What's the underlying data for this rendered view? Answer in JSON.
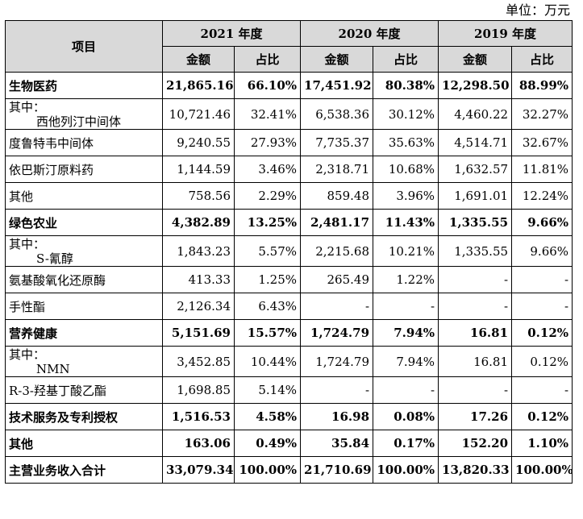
{
  "unit_label": "单位：万元",
  "header": {
    "item": "项目",
    "years": [
      "2021 年度",
      "2020 年度",
      "2019 年度"
    ],
    "amount": "金额",
    "ratio": "占比"
  },
  "rows": [
    {
      "label": "生物医药",
      "v": [
        "21,865.16",
        "66.10%",
        "17,451.92",
        "80.38%",
        "12,298.50",
        "88.99%"
      ]
    },
    {
      "prefix": "其中：",
      "label": "西他列汀中间体",
      "v": [
        "10,721.46",
        "32.41%",
        "6,538.36",
        "30.12%",
        "4,460.22",
        "32.27%"
      ]
    },
    {
      "label": "度鲁特韦中间体",
      "v": [
        "9,240.55",
        "27.93%",
        "7,735.37",
        "35.63%",
        "4,514.71",
        "32.67%"
      ]
    },
    {
      "label": "依巴斯汀原料药",
      "v": [
        "1,144.59",
        "3.46%",
        "2,318.71",
        "10.68%",
        "1,632.57",
        "11.81%"
      ]
    },
    {
      "label": "其他",
      "v": [
        "758.56",
        "2.29%",
        "859.48",
        "3.96%",
        "1,691.01",
        "12.24%"
      ]
    },
    {
      "label": "绿色农业",
      "v": [
        "4,382.89",
        "13.25%",
        "2,481.17",
        "11.43%",
        "1,335.55",
        "9.66%"
      ]
    },
    {
      "prefix": "其中：",
      "label": "S-氰醇",
      "v": [
        "1,843.23",
        "5.57%",
        "2,215.68",
        "10.21%",
        "1,335.55",
        "9.66%"
      ]
    },
    {
      "label": "氨基酸氧化还原酶",
      "v": [
        "413.33",
        "1.25%",
        "265.49",
        "1.22%",
        "-",
        "-"
      ]
    },
    {
      "label": "手性酯",
      "v": [
        "2,126.34",
        "6.43%",
        "-",
        "-",
        "-",
        "-"
      ]
    },
    {
      "label": "营养健康",
      "v": [
        "5,151.69",
        "15.57%",
        "1,724.79",
        "7.94%",
        "16.81",
        "0.12%"
      ]
    },
    {
      "prefix": "其中：",
      "label": "NMN",
      "v": [
        "3,452.85",
        "10.44%",
        "1,724.79",
        "7.94%",
        "16.81",
        "0.12%"
      ]
    },
    {
      "label": "R-3-羟基丁酸乙酯",
      "v": [
        "1,698.85",
        "5.14%",
        "-",
        "-",
        "-",
        "-"
      ]
    },
    {
      "label": "技术服务及专利授权",
      "v": [
        "1,516.53",
        "4.58%",
        "16.98",
        "0.08%",
        "17.26",
        "0.12%"
      ]
    },
    {
      "label": "其他",
      "v": [
        "163.06",
        "0.49%",
        "35.84",
        "0.17%",
        "152.20",
        "1.10%"
      ]
    },
    {
      "label": "主营业务收入合计",
      "v": [
        "33,079.34",
        "100.00%",
        "21,710.69",
        "100.00%",
        "13,820.33",
        "100.00%"
      ]
    }
  ]
}
